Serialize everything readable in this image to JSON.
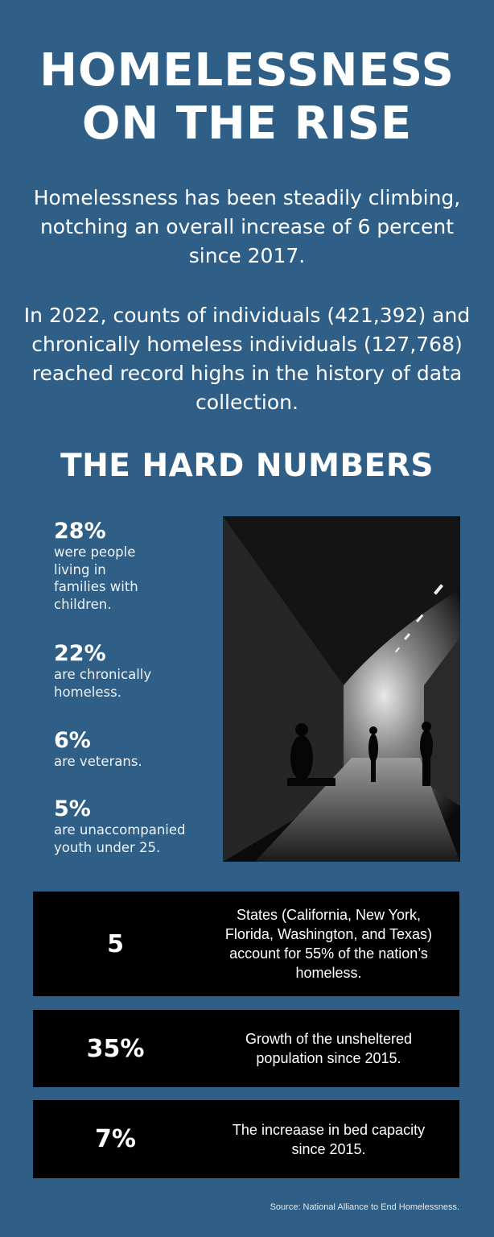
{
  "title": {
    "line1": "HOMELESSNESS",
    "line2": "ON THE RISE"
  },
  "intro": [
    "Homelessness has been steadily climbing, notching an overall increase of 6 percent since 2017.",
    "In 2022, counts of individuals (421,392) and chronically homeless individuals (127,768) reached record highs in the history of data collection."
  ],
  "section_heading": "THE HARD NUMBERS",
  "stats": [
    {
      "value": "28%",
      "description": "were people living in families with children."
    },
    {
      "value": "22%",
      "description": "are chronically homeless."
    },
    {
      "value": "6%",
      "description": "are veterans."
    },
    {
      "value": "5%",
      "description": "are unaccompanied youth under 25."
    }
  ],
  "boxes": [
    {
      "value": "5",
      "text": "States (California, New York, Florida, Washington, and Texas) account for 55% of the nation’s homeless."
    },
    {
      "value": "35%",
      "text": "Growth of the unsheltered population since 2015."
    },
    {
      "value": "7%",
      "text": "The increaase in bed capacity since 2015."
    }
  ],
  "source": "Source: National Alliance to End Homelessness.",
  "colors": {
    "background": "#2f5f86",
    "box": "#000000",
    "text": "#ffffff"
  }
}
